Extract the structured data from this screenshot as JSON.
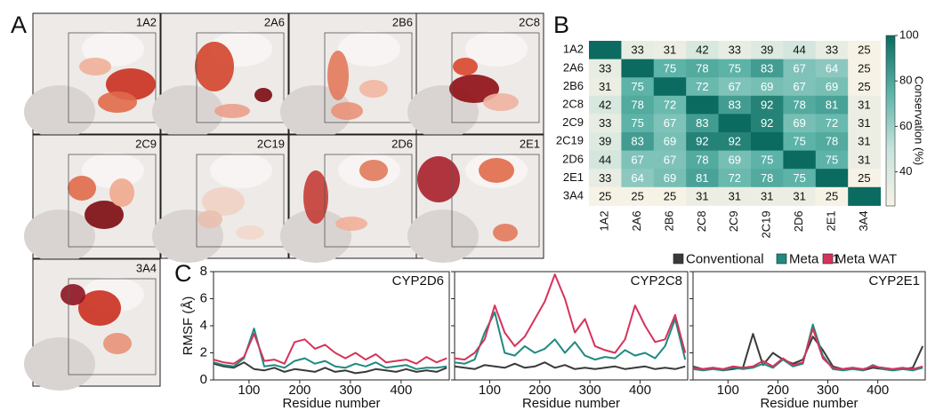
{
  "panel_labels": [
    "A",
    "B",
    "C"
  ],
  "structures": [
    "1A2",
    "2A6",
    "2B6",
    "2C8",
    "2C9",
    "2C19",
    "2D6",
    "2E1",
    "3A4"
  ],
  "chart_data": [
    {
      "type": "heatmap",
      "rows": [
        "1A2",
        "2A6",
        "2B6",
        "2C8",
        "2C9",
        "2C19",
        "2D6",
        "2E1",
        "3A4"
      ],
      "columns": [
        "1A2",
        "2A6",
        "2B6",
        "2C8",
        "2C9",
        "2C19",
        "2D6",
        "2E1",
        "3A4"
      ],
      "values": [
        [
          null,
          33,
          31,
          42,
          33,
          39,
          44,
          33,
          25
        ],
        [
          33,
          null,
          75,
          78,
          75,
          83,
          67,
          64,
          25
        ],
        [
          31,
          75,
          null,
          72,
          67,
          69,
          67,
          69,
          25
        ],
        [
          42,
          78,
          72,
          null,
          83,
          92,
          78,
          81,
          31
        ],
        [
          33,
          75,
          67,
          83,
          null,
          92,
          69,
          72,
          31
        ],
        [
          39,
          83,
          69,
          92,
          92,
          null,
          75,
          78,
          31
        ],
        [
          44,
          67,
          67,
          78,
          69,
          75,
          null,
          75,
          31
        ],
        [
          33,
          64,
          69,
          81,
          72,
          78,
          75,
          null,
          25
        ],
        [
          25,
          25,
          25,
          31,
          31,
          31,
          31,
          25,
          null
        ]
      ],
      "colorbar_label": "Conservation (%)",
      "clim": [
        25,
        100
      ],
      "cticks": [
        40,
        60,
        80,
        100
      ],
      "colormap": [
        "#f7f2e6",
        "#c8e3dc",
        "#5db3a8",
        "#0b6b60"
      ]
    },
    {
      "type": "line",
      "title": "CYP2D6",
      "ylabel": "RMSF (Å)",
      "xlabel": "Residue number",
      "xlim": [
        30,
        495
      ],
      "ylim": [
        0,
        8
      ],
      "xticks": [
        100,
        200,
        300,
        400
      ],
      "yticks": [
        0,
        2,
        4,
        6,
        8
      ],
      "x": [
        30,
        50,
        70,
        90,
        110,
        130,
        150,
        170,
        190,
        210,
        230,
        250,
        270,
        290,
        310,
        330,
        350,
        370,
        390,
        410,
        430,
        450,
        470,
        490
      ],
      "series": [
        {
          "name": "Conventional",
          "color": "#3a3a3a",
          "values": [
            1.2,
            1.0,
            0.9,
            1.3,
            0.8,
            0.7,
            0.9,
            0.6,
            0.8,
            0.7,
            0.6,
            0.9,
            0.6,
            0.7,
            0.5,
            0.6,
            0.8,
            0.7,
            0.6,
            0.8,
            0.6,
            0.7,
            0.6,
            0.9
          ]
        },
        {
          "name": "Meta H1",
          "color": "#1f8a80",
          "values": [
            1.3,
            1.1,
            1.0,
            1.6,
            3.8,
            1.0,
            1.1,
            0.9,
            1.4,
            1.6,
            1.2,
            1.4,
            1.0,
            0.9,
            1.2,
            1.0,
            1.3,
            0.9,
            1.0,
            1.1,
            0.8,
            0.9,
            0.9,
            1.0
          ]
        },
        {
          "name": "Meta WAT",
          "color": "#d6335a",
          "values": [
            1.5,
            1.3,
            1.2,
            1.7,
            3.4,
            1.4,
            1.5,
            1.2,
            2.8,
            3.0,
            2.3,
            2.6,
            2.0,
            1.6,
            2.0,
            1.5,
            1.9,
            1.3,
            1.4,
            1.5,
            1.2,
            1.7,
            1.3,
            1.6
          ]
        }
      ]
    },
    {
      "type": "line",
      "title": "CYP2C8",
      "xlabel": "Residue number",
      "xlim": [
        30,
        495
      ],
      "ylim": [
        0,
        8
      ],
      "xticks": [
        100,
        200,
        300,
        400
      ],
      "yticks": [
        0,
        2,
        4,
        6,
        8
      ],
      "x": [
        30,
        50,
        70,
        90,
        110,
        130,
        150,
        170,
        190,
        210,
        230,
        250,
        270,
        290,
        310,
        330,
        350,
        370,
        390,
        410,
        430,
        450,
        470,
        490
      ],
      "series": [
        {
          "name": "Conventional",
          "color": "#3a3a3a",
          "values": [
            1.0,
            0.9,
            0.8,
            1.1,
            1.0,
            0.9,
            1.2,
            0.9,
            1.0,
            1.3,
            0.9,
            1.1,
            0.8,
            0.9,
            0.8,
            0.9,
            1.0,
            0.8,
            0.9,
            1.0,
            0.8,
            0.9,
            0.8,
            1.0
          ]
        },
        {
          "name": "Meta H1",
          "color": "#1f8a80",
          "values": [
            1.3,
            1.2,
            1.5,
            3.5,
            5.0,
            2.0,
            1.8,
            2.5,
            2.0,
            2.3,
            3.0,
            2.0,
            2.8,
            1.8,
            1.5,
            1.7,
            1.6,
            2.2,
            1.8,
            2.0,
            1.6,
            2.5,
            4.5,
            1.5
          ]
        },
        {
          "name": "Meta WAT",
          "color": "#d6335a",
          "values": [
            1.6,
            1.5,
            2.0,
            3.0,
            5.5,
            3.5,
            2.5,
            3.2,
            4.5,
            5.8,
            7.8,
            6.0,
            3.5,
            4.5,
            2.5,
            2.2,
            2.0,
            3.0,
            5.5,
            4.0,
            2.8,
            3.0,
            4.8,
            2.0
          ]
        }
      ]
    },
    {
      "type": "line",
      "title": "CYP2E1",
      "xlabel": "Residue number",
      "xlim": [
        30,
        495
      ],
      "ylim": [
        0,
        8
      ],
      "xticks": [
        100,
        200,
        300,
        400
      ],
      "yticks": [
        0,
        2,
        4,
        6,
        8
      ],
      "x": [
        30,
        50,
        70,
        90,
        110,
        130,
        150,
        170,
        190,
        210,
        230,
        250,
        270,
        290,
        310,
        330,
        350,
        370,
        390,
        410,
        430,
        450,
        470,
        490
      ],
      "series": [
        {
          "name": "Conventional",
          "color": "#3a3a3a",
          "values": [
            1.0,
            0.8,
            0.9,
            0.7,
            0.8,
            0.9,
            3.4,
            1.1,
            2.0,
            1.5,
            1.2,
            1.5,
            3.2,
            2.2,
            1.0,
            0.8,
            0.9,
            0.7,
            0.9,
            0.8,
            0.7,
            0.8,
            0.9,
            2.5
          ]
        },
        {
          "name": "Meta H1",
          "color": "#1f8a80",
          "values": [
            0.8,
            0.7,
            0.8,
            0.7,
            0.9,
            0.8,
            0.9,
            1.2,
            0.9,
            1.5,
            1.0,
            1.2,
            4.1,
            1.8,
            0.8,
            0.7,
            0.8,
            0.7,
            1.1,
            0.8,
            0.7,
            0.8,
            0.7,
            0.9
          ]
        },
        {
          "name": "Meta WAT",
          "color": "#d6335a",
          "values": [
            0.9,
            0.8,
            0.9,
            0.8,
            1.0,
            0.9,
            1.0,
            1.4,
            1.0,
            1.6,
            1.1,
            1.3,
            3.8,
            1.6,
            0.9,
            0.8,
            0.9,
            0.8,
            1.0,
            0.9,
            0.8,
            0.9,
            0.8,
            1.0
          ]
        }
      ]
    }
  ]
}
